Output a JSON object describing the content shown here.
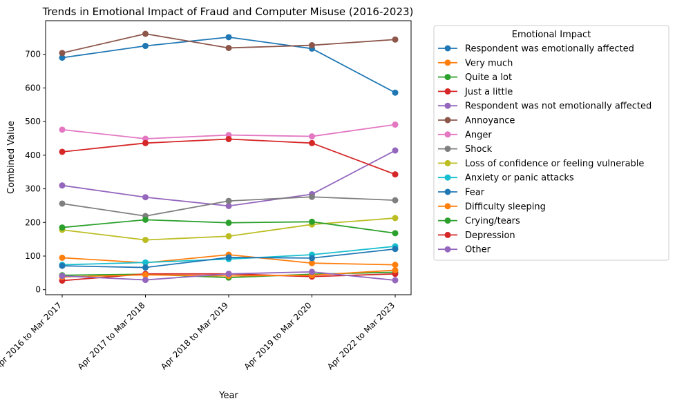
{
  "chart_data": {
    "type": "line",
    "title": "Trends in Emotional Impact of Fraud and Computer Misuse (2016-2023)",
    "xlabel": "Year",
    "ylabel": "Combined Value",
    "categories": [
      "Apr 2016 to Mar 2017",
      "Apr 2017 to Mar 2018",
      "Apr 2018 to Mar 2019",
      "Apr 2019 to Mar 2020",
      "Apr 2022 to Mar 2023"
    ],
    "ylim": [
      -15,
      800
    ],
    "yticks": [
      0,
      100,
      200,
      300,
      400,
      500,
      600,
      700
    ],
    "legend_title": "Emotional Impact",
    "legend_position": "outside-right",
    "grid": false,
    "series": [
      {
        "name": "Respondent was emotionally affected",
        "color": "#1f77b4",
        "values": [
          690,
          725,
          751,
          717,
          586
        ]
      },
      {
        "name": "Very much",
        "color": "#ff7f0e",
        "values": [
          95,
          80,
          104,
          79,
          74
        ]
      },
      {
        "name": "Quite a lot",
        "color": "#2ca02c",
        "values": [
          43,
          46,
          36,
          46,
          52
        ]
      },
      {
        "name": "Just a little",
        "color": "#d62728",
        "values": [
          27,
          47,
          47,
          39,
          47
        ]
      },
      {
        "name": "Respondent was not emotionally affected",
        "color": "#9467bd",
        "values": [
          310,
          275,
          249,
          284,
          414
        ]
      },
      {
        "name": "Annoyance",
        "color": "#8c564b",
        "values": [
          704,
          761,
          719,
          727,
          744
        ]
      },
      {
        "name": "Anger",
        "color": "#e377c2",
        "values": [
          476,
          449,
          460,
          456,
          491
        ]
      },
      {
        "name": "Shock",
        "color": "#7f7f7f",
        "values": [
          256,
          219,
          264,
          276,
          266
        ]
      },
      {
        "name": "Loss of confidence or feeling vulnerable",
        "color": "#bcbd22",
        "values": [
          178,
          148,
          159,
          194,
          213
        ]
      },
      {
        "name": "Anxiety or panic attacks",
        "color": "#17becf",
        "values": [
          74,
          81,
          91,
          104,
          129
        ]
      },
      {
        "name": "Fear",
        "color": "#1f77b4",
        "values": [
          71,
          66,
          96,
          94,
          121
        ]
      },
      {
        "name": "Difficulty sleeping",
        "color": "#ff7f0e",
        "values": [
          38,
          44,
          41,
          43,
          58
        ]
      },
      {
        "name": "Crying/tears",
        "color": "#2ca02c",
        "values": [
          185,
          208,
          199,
          202,
          168
        ]
      },
      {
        "name": "Depression",
        "color": "#d62728",
        "values": [
          410,
          436,
          448,
          436,
          343
        ]
      },
      {
        "name": "Other",
        "color": "#9467bd",
        "values": [
          41,
          29,
          47,
          53,
          28
        ]
      }
    ]
  }
}
